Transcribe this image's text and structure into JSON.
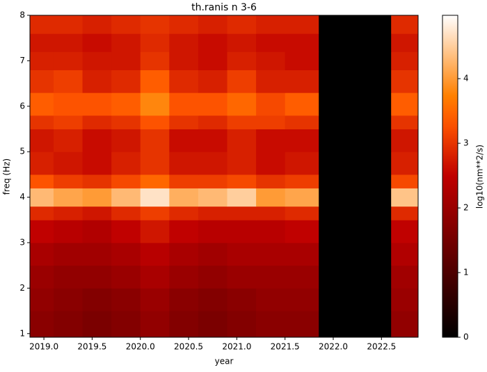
{
  "chart_data": {
    "type": "heatmap",
    "title": "th.ranis n 3-6",
    "x_label": "year",
    "y_label": "freq (Hz)",
    "colorbar_label": "log10(nm**2/s)",
    "colormap": "gist_heat",
    "xlim": [
      2018.855,
      2022.88
    ],
    "ylim": [
      0.92,
      8
    ],
    "clim": [
      0,
      4.98
    ],
    "xticks": [
      {
        "value": 2019.0,
        "label": "2019.0"
      },
      {
        "value": 2019.5,
        "label": "2019.5"
      },
      {
        "value": 2020.0,
        "label": "2020.0"
      },
      {
        "value": 2020.5,
        "label": "2020.5"
      },
      {
        "value": 2021.0,
        "label": "2021.0"
      },
      {
        "value": 2021.5,
        "label": "2021.5"
      },
      {
        "value": 2022.0,
        "label": "2022.0"
      },
      {
        "value": 2022.5,
        "label": "2022.5"
      }
    ],
    "yticks": [
      1,
      2,
      3,
      4,
      5,
      6,
      7,
      8
    ],
    "cticks": [
      0,
      1,
      2,
      3,
      4
    ],
    "x_edges": [
      2018.855,
      2019.1,
      2019.4,
      2019.7,
      2020.0,
      2020.3,
      2020.6,
      2020.9,
      2021.2,
      2021.5,
      2021.85,
      2022.6,
      2022.88
    ],
    "y_edges": [
      0.92,
      1.5,
      2,
      2.5,
      3,
      3.5,
      3.8,
      4.2,
      4.5,
      5,
      5.5,
      5.8,
      6.3,
      6.8,
      7.2,
      7.6,
      8
    ],
    "z": [
      [
        1.8,
        1.7,
        1.6,
        1.7,
        1.9,
        1.7,
        1.6,
        1.7,
        1.8,
        1.8,
        0,
        1.9
      ],
      [
        1.9,
        1.8,
        1.7,
        1.8,
        2.0,
        1.8,
        1.7,
        1.8,
        1.9,
        1.9,
        0,
        2.0
      ],
      [
        2.0,
        1.9,
        1.9,
        2.0,
        2.2,
        2.0,
        1.9,
        2.0,
        2.0,
        2.0,
        0,
        2.1
      ],
      [
        2.2,
        2.1,
        2.1,
        2.2,
        2.4,
        2.2,
        2.1,
        2.2,
        2.2,
        2.2,
        0,
        2.3
      ],
      [
        2.5,
        2.4,
        2.3,
        2.5,
        2.7,
        2.5,
        2.4,
        2.4,
        2.4,
        2.5,
        0,
        2.5
      ],
      [
        2.9,
        2.8,
        2.7,
        2.9,
        3.1,
        2.9,
        2.8,
        2.8,
        2.8,
        2.9,
        0,
        2.9
      ],
      [
        4.3,
        4.1,
        4.0,
        4.3,
        4.7,
        4.2,
        4.3,
        4.5,
        4.0,
        4.1,
        0,
        4.4
      ],
      [
        3.3,
        3.1,
        3.0,
        3.2,
        3.5,
        3.1,
        3.1,
        3.2,
        3.0,
        3.1,
        0,
        3.2
      ],
      [
        2.8,
        2.7,
        2.6,
        2.8,
        3.0,
        2.7,
        2.7,
        2.8,
        2.6,
        2.7,
        0,
        2.8
      ],
      [
        2.7,
        2.8,
        2.6,
        2.7,
        3.0,
        2.6,
        2.6,
        2.8,
        2.6,
        2.6,
        0,
        2.7
      ],
      [
        3.0,
        3.1,
        2.9,
        3.0,
        3.3,
        3.0,
        2.9,
        3.1,
        3.1,
        3.0,
        0,
        3.0
      ],
      [
        3.4,
        3.3,
        3.3,
        3.4,
        3.8,
        3.3,
        3.3,
        3.5,
        3.2,
        3.4,
        0,
        3.4
      ],
      [
        3.0,
        3.1,
        2.8,
        2.9,
        3.4,
        2.9,
        2.8,
        3.1,
        2.8,
        2.8,
        0,
        3.0
      ],
      [
        2.8,
        2.8,
        2.7,
        2.7,
        3.0,
        2.7,
        2.6,
        2.8,
        2.7,
        2.6,
        0,
        2.8
      ],
      [
        2.7,
        2.7,
        2.6,
        2.7,
        2.9,
        2.7,
        2.6,
        2.7,
        2.6,
        2.6,
        0,
        2.7
      ],
      [
        2.9,
        2.9,
        2.8,
        2.9,
        3.0,
        2.9,
        2.8,
        2.9,
        2.8,
        2.8,
        0,
        2.9
      ]
    ]
  }
}
